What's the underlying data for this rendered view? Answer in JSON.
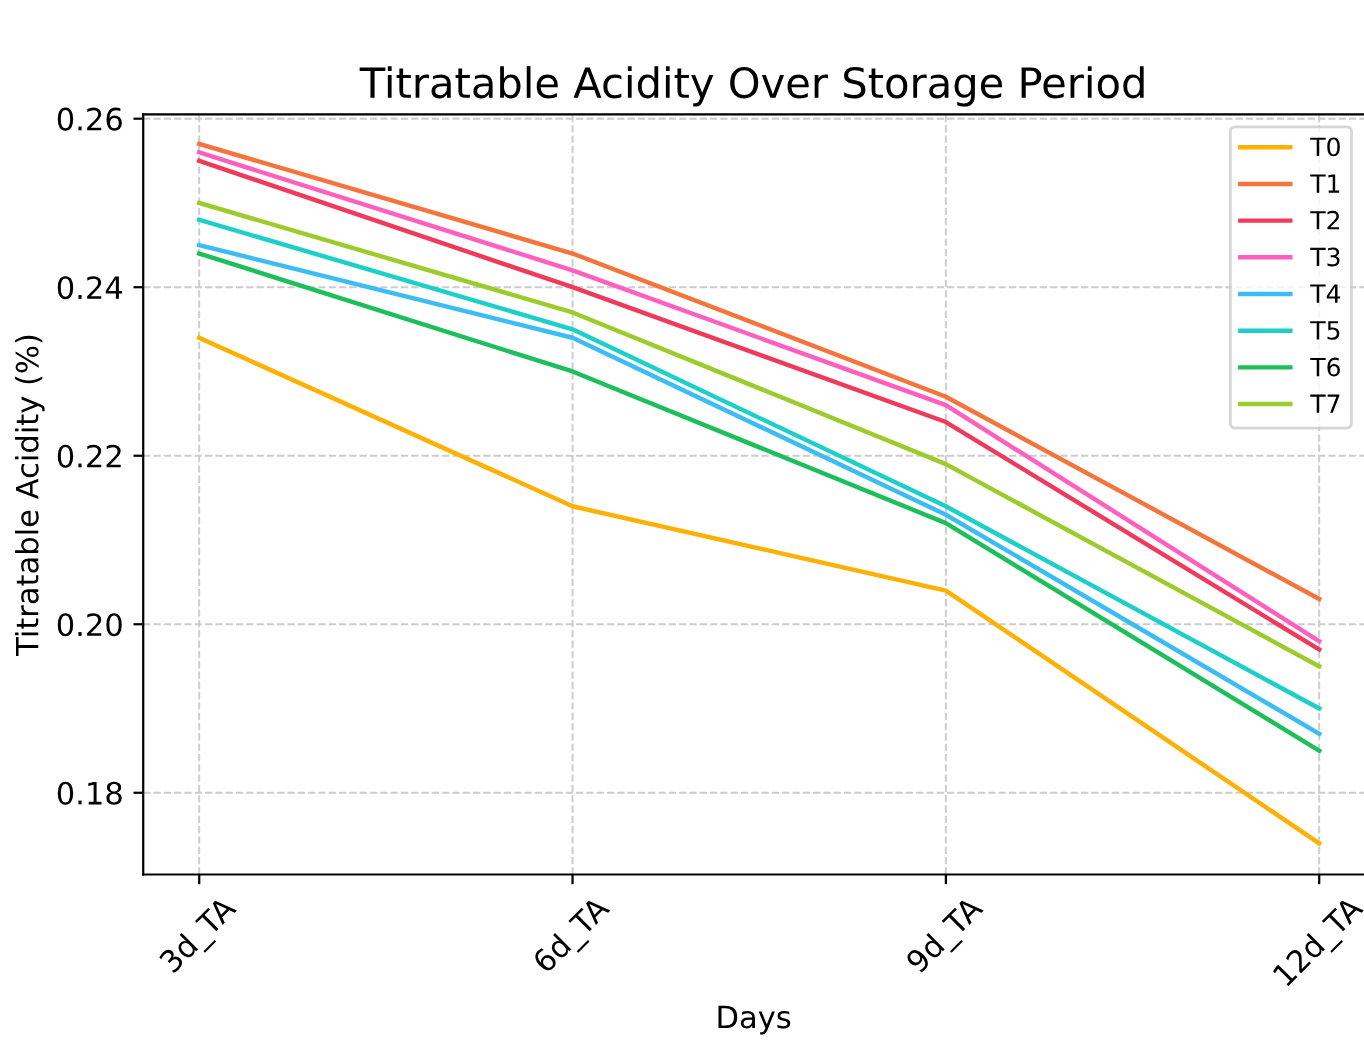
{
  "chart_data": {
    "type": "line",
    "title": "Titratable Acidity Over Storage Period",
    "xlabel": "Days",
    "ylabel": "Titratable Acidity (%)",
    "categories": [
      "3d_TA",
      "6d_TA",
      "9d_TA",
      "12d_TA"
    ],
    "series": [
      {
        "name": "T0",
        "color": "#ffb000",
        "values": [
          0.234,
          0.214,
          0.204,
          0.174
        ]
      },
      {
        "name": "T1",
        "color": "#f4743b",
        "values": [
          0.257,
          0.244,
          0.227,
          0.203
        ]
      },
      {
        "name": "T2",
        "color": "#f03a5c",
        "values": [
          0.255,
          0.24,
          0.224,
          0.197
        ]
      },
      {
        "name": "T3",
        "color": "#ff5fbf",
        "values": [
          0.256,
          0.242,
          0.226,
          0.198
        ]
      },
      {
        "name": "T4",
        "color": "#3bbcf5",
        "values": [
          0.245,
          0.234,
          0.213,
          0.187
        ]
      },
      {
        "name": "T5",
        "color": "#1ccfc9",
        "values": [
          0.248,
          0.235,
          0.214,
          0.19
        ]
      },
      {
        "name": "T6",
        "color": "#1dbf5b",
        "values": [
          0.244,
          0.23,
          0.212,
          0.185
        ]
      },
      {
        "name": "T7",
        "color": "#9ccc2c",
        "values": [
          0.25,
          0.237,
          0.219,
          0.195
        ]
      }
    ],
    "ylim": [
      0.1703,
      0.2605
    ],
    "yticks": [
      {
        "value": 0.18,
        "label": "0.18"
      },
      {
        "value": 0.2,
        "label": "0.20"
      },
      {
        "value": 0.22,
        "label": "0.22"
      },
      {
        "value": 0.24,
        "label": "0.24"
      },
      {
        "value": 0.26,
        "label": "0.26"
      }
    ],
    "grid": true,
    "legend": "top right",
    "marker": "none",
    "line_style": "solid"
  }
}
